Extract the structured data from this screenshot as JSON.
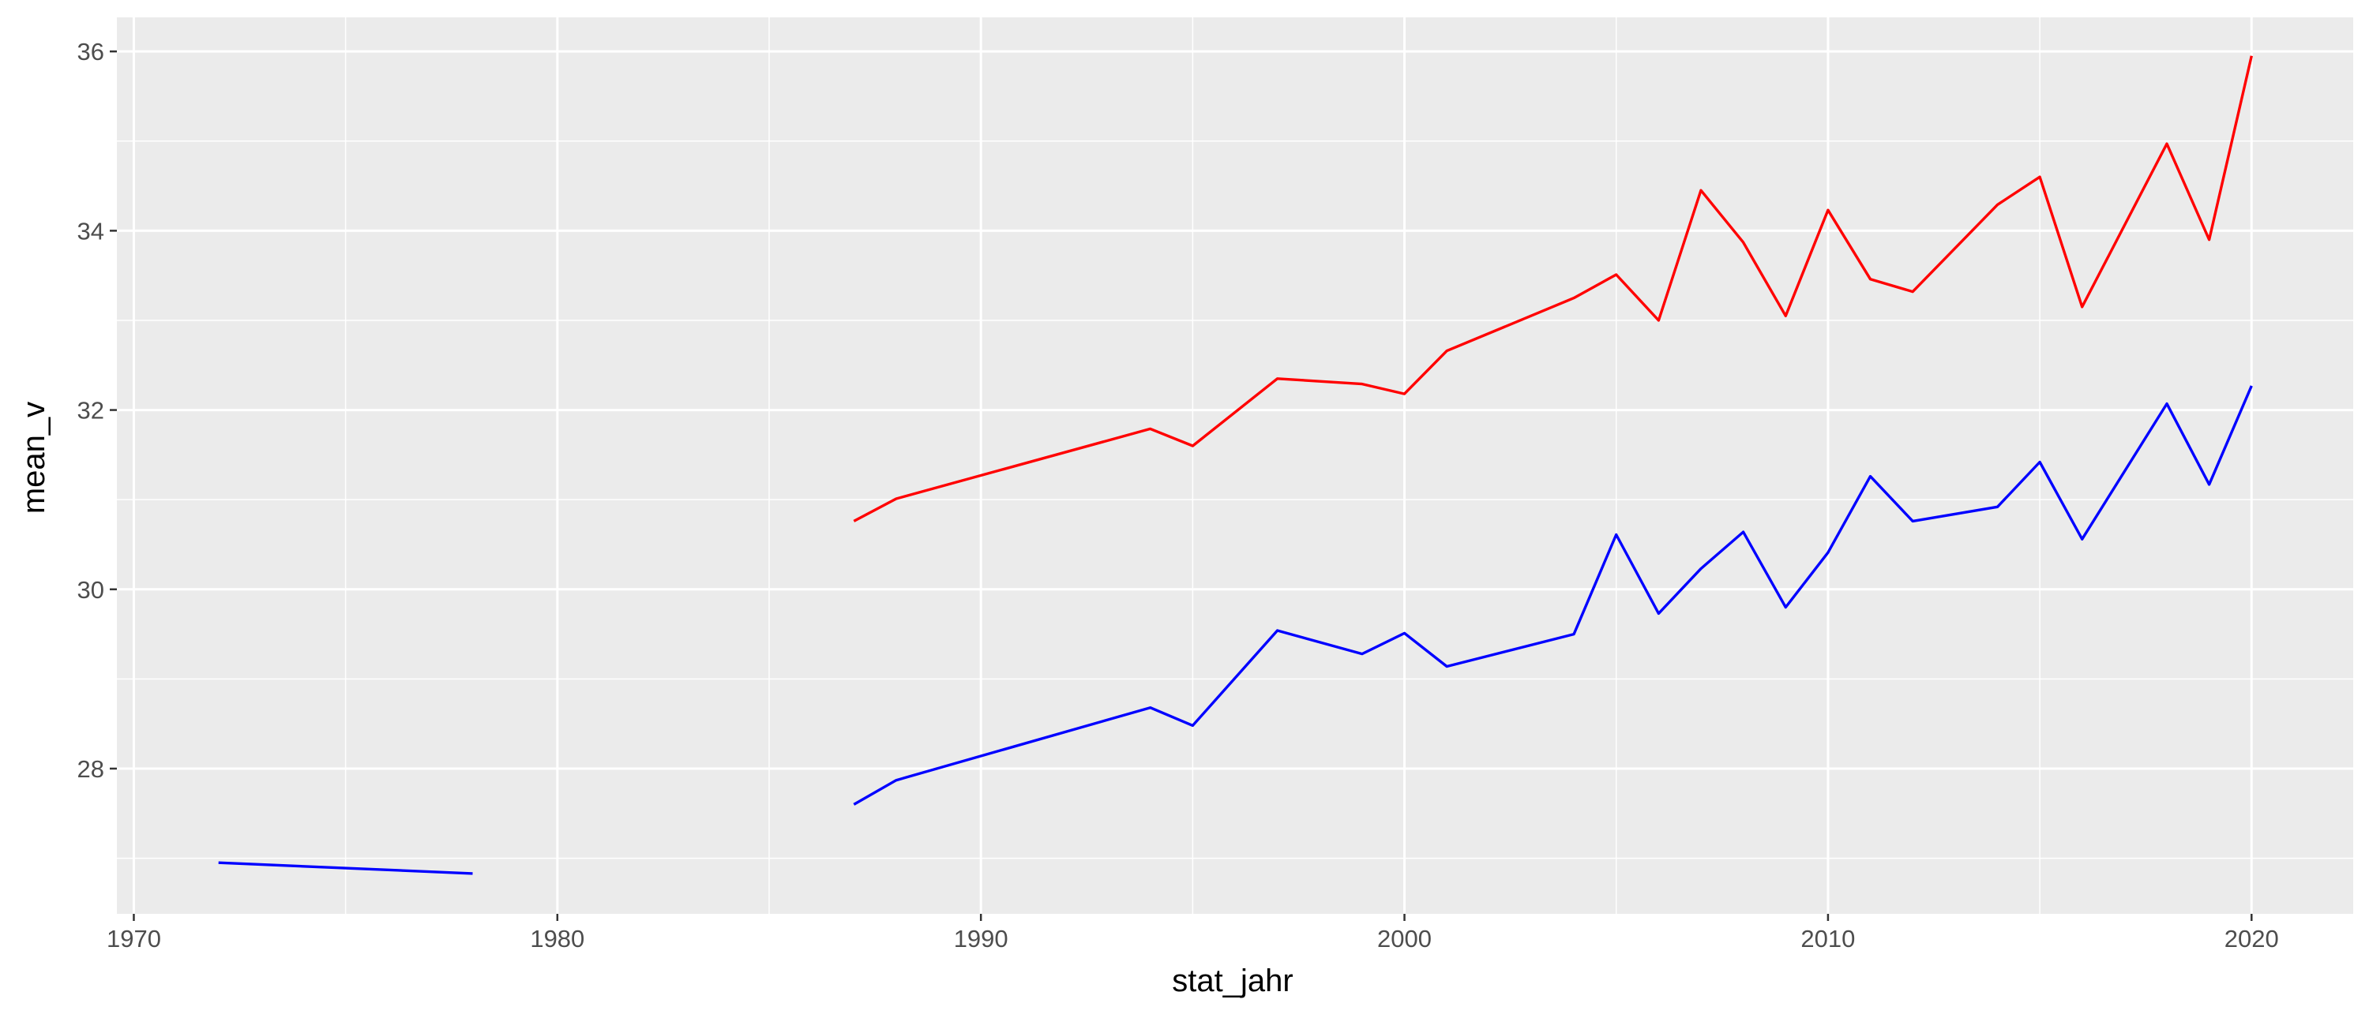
{
  "chart_data": {
    "type": "line",
    "xlabel": "stat_jahr",
    "ylabel": "mean_v",
    "xlim": [
      1969.6,
      2022.4
    ],
    "ylim": [
      26.38,
      36.38
    ],
    "x_ticks": [
      1970,
      1980,
      1990,
      2000,
      2010,
      2020
    ],
    "y_ticks": [
      28,
      30,
      32,
      34,
      36
    ],
    "grid": true,
    "legend": "none",
    "background": "#ebebeb",
    "series": [
      {
        "color": "#ff0000",
        "segments": [
          [
            [
              1987,
              30.76
            ],
            [
              1988,
              31.01
            ],
            [
              1994,
              31.79
            ],
            [
              1995,
              31.6
            ],
            [
              1997,
              32.35
            ],
            [
              1999,
              32.29
            ],
            [
              2000,
              32.18
            ],
            [
              2001,
              32.66
            ],
            [
              2004,
              33.25
            ],
            [
              2005,
              33.51
            ],
            [
              2006,
              33.0
            ],
            [
              2007,
              34.45
            ],
            [
              2008,
              33.87
            ],
            [
              2009,
              33.05
            ],
            [
              2010,
              34.23
            ],
            [
              2011,
              33.46
            ],
            [
              2012,
              33.32
            ],
            [
              2014,
              34.29
            ],
            [
              2015,
              34.6
            ],
            [
              2016,
              33.15
            ],
            [
              2018,
              34.97
            ],
            [
              2019,
              33.9
            ],
            [
              2020,
              35.95
            ]
          ]
        ]
      },
      {
        "color": "#0000ff",
        "segments": [
          [
            [
              1972,
              26.95
            ],
            [
              1978,
              26.83
            ]
          ],
          [
            [
              1987,
              27.6
            ],
            [
              1988,
              27.87
            ],
            [
              1994,
              28.68
            ],
            [
              1995,
              28.48
            ],
            [
              1997,
              29.54
            ],
            [
              1999,
              29.28
            ],
            [
              2000,
              29.51
            ],
            [
              2001,
              29.14
            ],
            [
              2004,
              29.5
            ],
            [
              2005,
              30.61
            ],
            [
              2006,
              29.73
            ],
            [
              2007,
              30.23
            ],
            [
              2008,
              30.64
            ],
            [
              2009,
              29.8
            ],
            [
              2010,
              30.41
            ],
            [
              2011,
              31.26
            ],
            [
              2012,
              30.76
            ],
            [
              2014,
              30.92
            ],
            [
              2015,
              31.42
            ],
            [
              2016,
              30.56
            ],
            [
              2018,
              32.07
            ],
            [
              2019,
              31.17
            ],
            [
              2020,
              32.27
            ]
          ]
        ]
      }
    ]
  }
}
